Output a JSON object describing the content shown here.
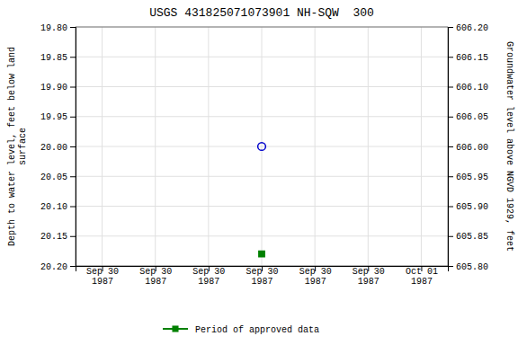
{
  "chart_data": {
    "type": "scatter",
    "title": "USGS 431825071073901 NH-SQW  300",
    "y_label": "Depth to water level, feet below land\nsurface",
    "y2_label": "Groundwater level above NGVD 1929, feet",
    "categories": [
      "Sep 30\n1987",
      "Sep 30\n1987",
      "Sep 30\n1987",
      "Sep 30\n1987",
      "Sep 30\n1987",
      "Sep 30\n1987",
      "Oct 01\n1987"
    ],
    "series": [
      {
        "color": "#0000cc",
        "marker": "circle-open",
        "values": [
          null,
          null,
          null,
          20.0,
          null,
          null,
          null
        ]
      },
      {
        "name": "Period of approved data",
        "color": "#008000",
        "marker": "square",
        "values": [
          null,
          null,
          null,
          20.18,
          null,
          null,
          null
        ]
      }
    ],
    "ylim": [
      20.2,
      19.8
    ],
    "yticks": [
      {
        "value": 19.8,
        "label": "19.80"
      },
      19.85,
      {
        "value": 19.9,
        "label": "19.90"
      },
      19.95,
      {
        "value": 20.0,
        "label": "20.00"
      },
      20.05,
      {
        "value": 20.1,
        "label": "20.10"
      },
      20.15,
      {
        "value": 20.2,
        "label": "20.20"
      }
    ],
    "y2lim": [
      605.8,
      606.2
    ],
    "y2ticks": [
      {
        "value": 606.2,
        "label": "606.20"
      },
      606.15,
      {
        "value": 606.1,
        "label": "606.10"
      },
      606.05,
      {
        "value": 606.0,
        "label": "606.00"
      },
      605.95,
      {
        "value": 605.9,
        "label": "605.90"
      },
      605.85,
      {
        "value": 605.8,
        "label": "605.80"
      }
    ],
    "grid": true,
    "legend": "bottom"
  }
}
